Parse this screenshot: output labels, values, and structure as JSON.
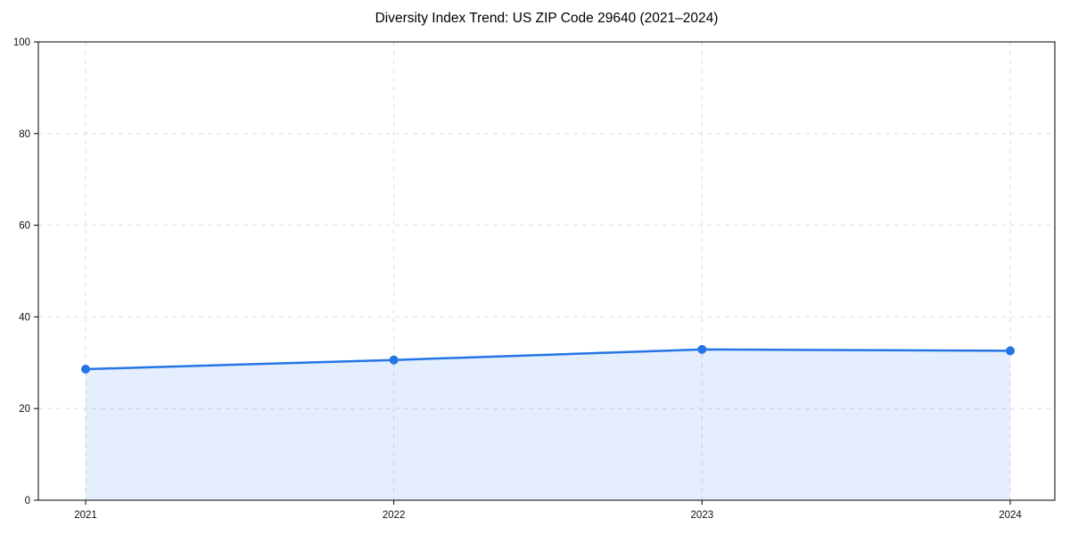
{
  "chart_data": {
    "type": "area",
    "title": "Diversity Index Trend: US ZIP Code 29640 (2021–2024)",
    "categories": [
      "2021",
      "2022",
      "2023",
      "2024"
    ],
    "series": [
      {
        "name": "Diversity Index",
        "values": [
          28.6,
          30.6,
          32.9,
          32.6
        ]
      }
    ],
    "xlabel": "",
    "ylabel": "",
    "ylim": [
      0,
      100
    ],
    "yticks": [
      0,
      20,
      40,
      60,
      80,
      100
    ],
    "grid": true,
    "grid_style": "dashed",
    "legend_position": "none",
    "line_color": "#2575e7",
    "marker_color": "#2575e7",
    "fill_color": "rgba(37, 117, 231, 0.12)",
    "grid_color": "#dddddd",
    "axis_color": "#000000",
    "tick_label_color": "#111111"
  }
}
